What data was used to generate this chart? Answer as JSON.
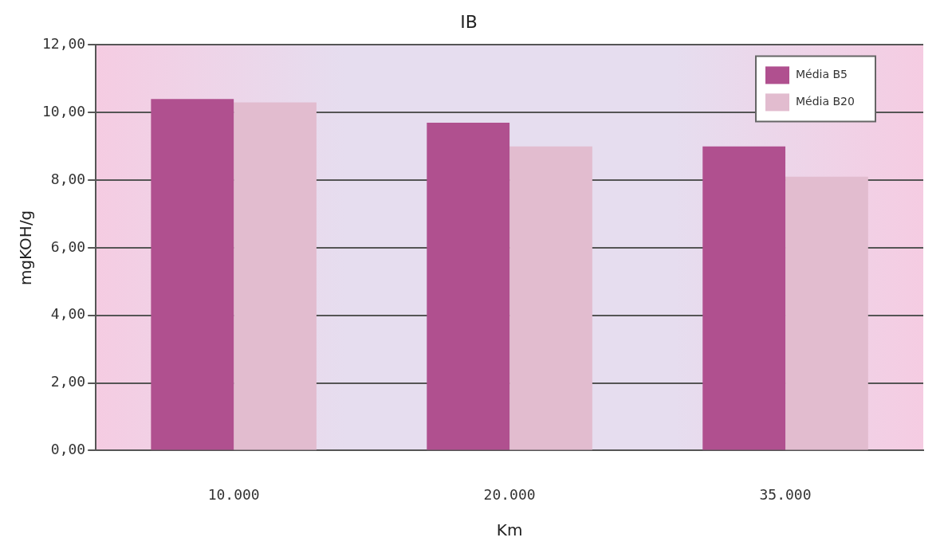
{
  "chart_data": {
    "type": "bar",
    "title": "IB",
    "xlabel": "Km",
    "ylabel": "mgKOH/g",
    "categories": [
      "10.000",
      "20.000",
      "35.000"
    ],
    "series": [
      {
        "name": "Média B5",
        "color": "#b0508f",
        "values": [
          10.4,
          9.7,
          9.0
        ]
      },
      {
        "name": "Média B20",
        "color": "#e2bccf",
        "values": [
          10.3,
          9.0,
          8.1
        ]
      }
    ],
    "ylim": [
      0,
      12
    ],
    "yticks": [
      {
        "value": 0,
        "label": "0,00"
      },
      {
        "value": 2,
        "label": "2,00"
      },
      {
        "value": 4,
        "label": "4,00"
      },
      {
        "value": 6,
        "label": "6,00"
      },
      {
        "value": 8,
        "label": "8,00"
      },
      {
        "value": 10,
        "label": "10,00"
      },
      {
        "value": 12,
        "label": "12,00"
      }
    ],
    "grid": "y",
    "legend": "top right"
  }
}
